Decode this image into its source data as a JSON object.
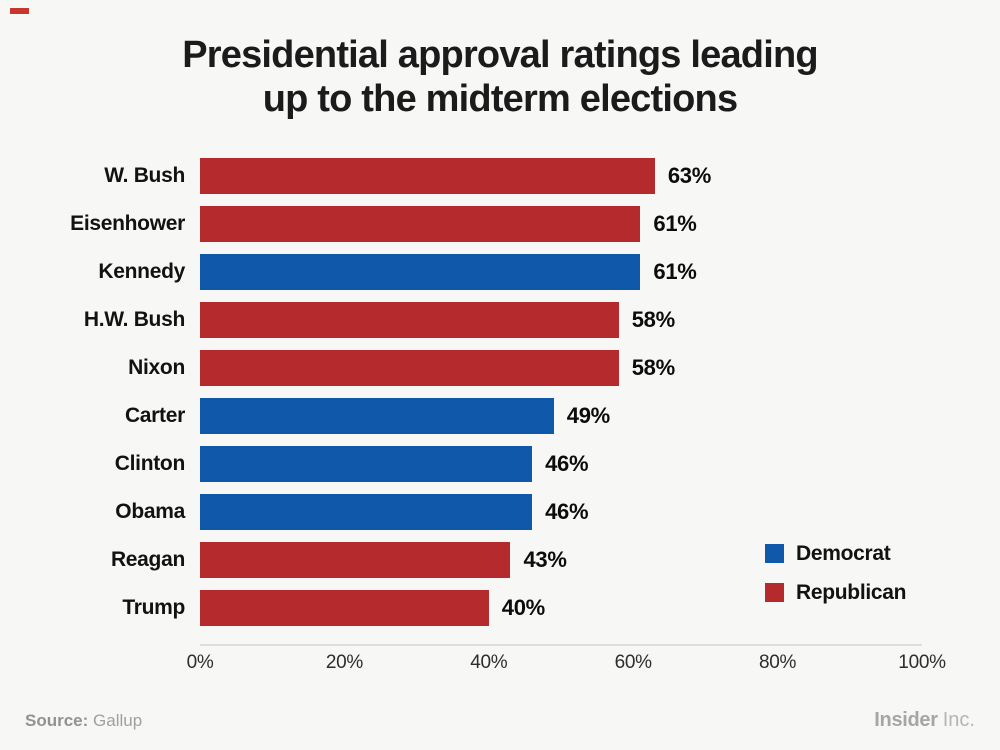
{
  "brand_accent_color": "#c6372e",
  "title": {
    "lines": [
      "Presidential approval ratings leading",
      "up to the midterm elections"
    ]
  },
  "chart_data": {
    "type": "bar",
    "orientation": "horizontal",
    "title": "Presidential approval ratings leading up to the midterm elections",
    "categories": [
      "W. Bush",
      "Eisenhower",
      "Kennedy",
      "H.W. Bush",
      "Nixon",
      "Carter",
      "Clinton",
      "Obama",
      "Reagan",
      "Trump"
    ],
    "values": [
      63,
      61,
      61,
      58,
      58,
      49,
      46,
      46,
      43,
      40
    ],
    "value_labels": [
      "63%",
      "61%",
      "61%",
      "58%",
      "58%",
      "49%",
      "46%",
      "46%",
      "43%",
      "40%"
    ],
    "parties": [
      "Republican",
      "Republican",
      "Democrat",
      "Republican",
      "Republican",
      "Democrat",
      "Democrat",
      "Democrat",
      "Republican",
      "Republican"
    ],
    "party_colors": {
      "Democrat": "#0f58aa",
      "Republican": "#b52b2d"
    },
    "xlim": [
      0,
      100
    ],
    "x_ticks": [
      {
        "value": 0,
        "label": "0%"
      },
      {
        "value": 20,
        "label": "20%"
      },
      {
        "value": 40,
        "label": "40%"
      },
      {
        "value": 60,
        "label": "60%"
      },
      {
        "value": 80,
        "label": "80%"
      },
      {
        "value": 100,
        "label": "100%"
      }
    ],
    "grid": false,
    "legend": {
      "position": "right-bottom",
      "items": [
        {
          "label": "Democrat",
          "color": "#0f58aa"
        },
        {
          "label": "Republican",
          "color": "#b52b2d"
        }
      ]
    }
  },
  "footer": {
    "source_label": "Source:",
    "source_value": "Gallup",
    "brand_name": "Insider",
    "brand_suffix": "Inc."
  }
}
